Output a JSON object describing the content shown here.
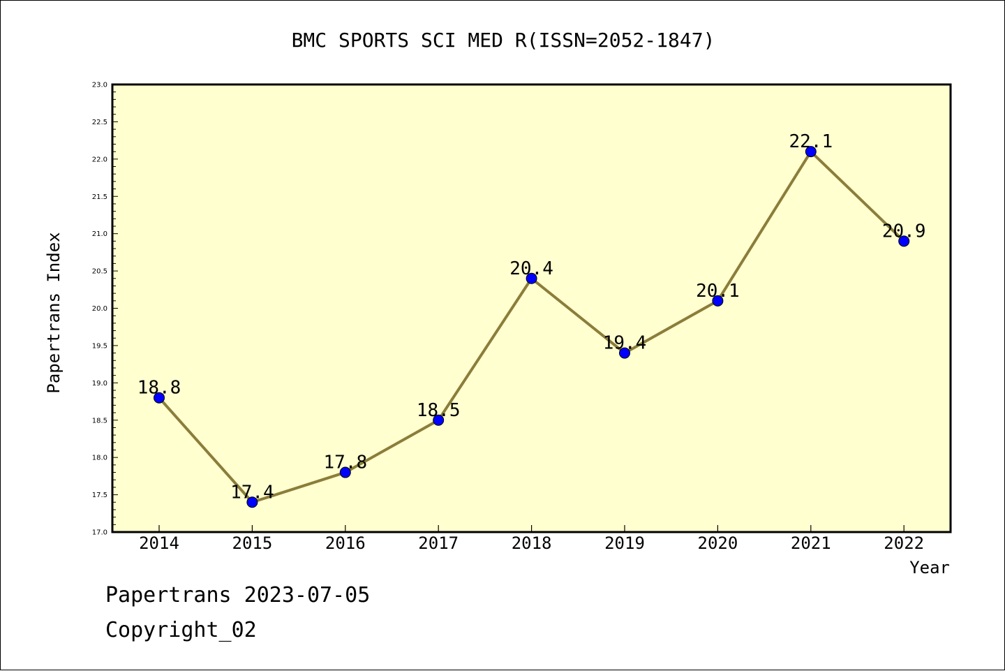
{
  "chart_data": {
    "type": "line",
    "title": "BMC SPORTS SCI MED R(ISSN=2052-1847)",
    "xlabel": "Year",
    "ylabel": "Papertrans Index",
    "categories": [
      "2014",
      "2015",
      "2016",
      "2017",
      "2018",
      "2019",
      "2020",
      "2021",
      "2022"
    ],
    "values": [
      18.8,
      17.4,
      17.8,
      18.5,
      20.4,
      19.4,
      20.1,
      22.1,
      20.9
    ],
    "data_labels": [
      "18.8",
      "17.4",
      "17.8",
      "18.5",
      "20.4",
      "19.4",
      "20.1",
      "22.1",
      "20.9"
    ],
    "ylim": [
      17.0,
      23.0
    ],
    "y_ticks": [
      "17.0",
      "17.5",
      "18.0",
      "18.5",
      "19.0",
      "19.5",
      "20.0",
      "20.5",
      "21.0",
      "21.5",
      "22.0",
      "22.5",
      "23.0"
    ],
    "grid": false,
    "colors": {
      "plot_background": "#ffffd0",
      "line": "#8b7d3a",
      "marker": "#0000ff"
    }
  },
  "footer": {
    "line1": "Papertrans 2023-07-05",
    "line2": "Copyright_02"
  }
}
